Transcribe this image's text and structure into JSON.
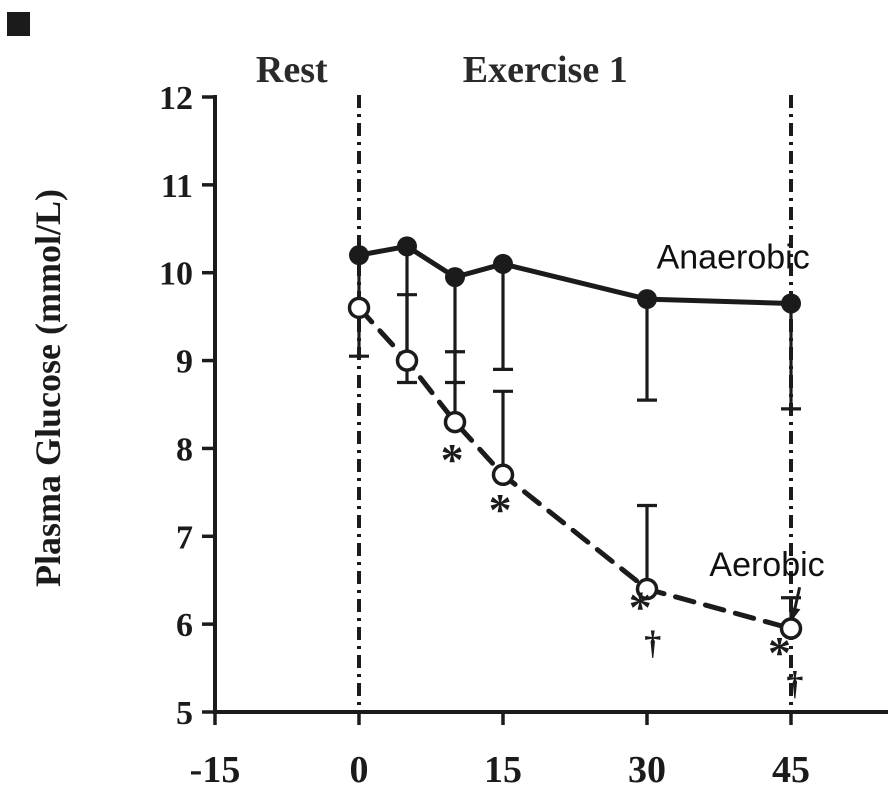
{
  "figure": {
    "background": "#ffffff",
    "ink_color": "#1b1b1b"
  },
  "chart_data": {
    "type": "line",
    "title": "",
    "xlabel": "",
    "ylabel": "Plasma Glucose (mmol/L)",
    "ylim": [
      5,
      12
    ],
    "xlim": [
      -15,
      46
    ],
    "yticks": [
      12,
      11,
      10,
      9,
      8,
      7,
      6,
      5
    ],
    "xticks": [
      -15,
      0,
      15,
      30,
      45
    ],
    "grid": false,
    "legend_position": "inline-labels",
    "phase_labels": [
      {
        "text": "Rest",
        "x": -7
      },
      {
        "text": "Exercise 1",
        "x": 19.4
      }
    ],
    "reference_vlines": [
      0,
      45
    ],
    "series": [
      {
        "name": "Anaerobic",
        "line_style": "solid",
        "marker": "filled-circle",
        "x": [
          0,
          5,
          10,
          15,
          30,
          45
        ],
        "y": [
          10.2,
          10.3,
          9.95,
          10.1,
          9.7,
          9.65
        ],
        "err_down": [
          1.15,
          1.55,
          1.2,
          1.2,
          1.15,
          1.2
        ],
        "err_up": [
          0,
          0,
          0,
          0,
          0,
          0
        ],
        "label": {
          "text": "Anaerobic",
          "x": 31,
          "y": 10.05
        }
      },
      {
        "name": "Aerobic",
        "line_style": "dashed",
        "marker": "open-circle",
        "x": [
          0,
          5,
          10,
          15,
          30,
          45
        ],
        "y": [
          9.6,
          9.0,
          8.3,
          7.7,
          6.4,
          5.95
        ],
        "err_down": [
          0,
          0,
          0,
          0,
          0,
          0
        ],
        "err_up": [
          0,
          0.75,
          0.8,
          0.95,
          0.95,
          0.35
        ],
        "label": {
          "text": "Aerobic",
          "x": 36.5,
          "y": 6.55
        }
      }
    ],
    "annotations": [
      {
        "text": "*",
        "x": 9.7,
        "y": 7.7
      },
      {
        "text": "*",
        "x": 14.7,
        "y": 7.13
      },
      {
        "text": "*",
        "x": 29.3,
        "y": 6.02
      },
      {
        "text": "†",
        "x": 30.6,
        "y": 5.66
      },
      {
        "text": "*",
        "x": 43.8,
        "y": 5.5
      },
      {
        "text": "†",
        "x": 45.4,
        "y": 5.2
      }
    ],
    "label_arrow": {
      "from": {
        "x": 45.9,
        "y": 6.42
      },
      "to": {
        "x": 45.15,
        "y": 6.05
      }
    }
  }
}
